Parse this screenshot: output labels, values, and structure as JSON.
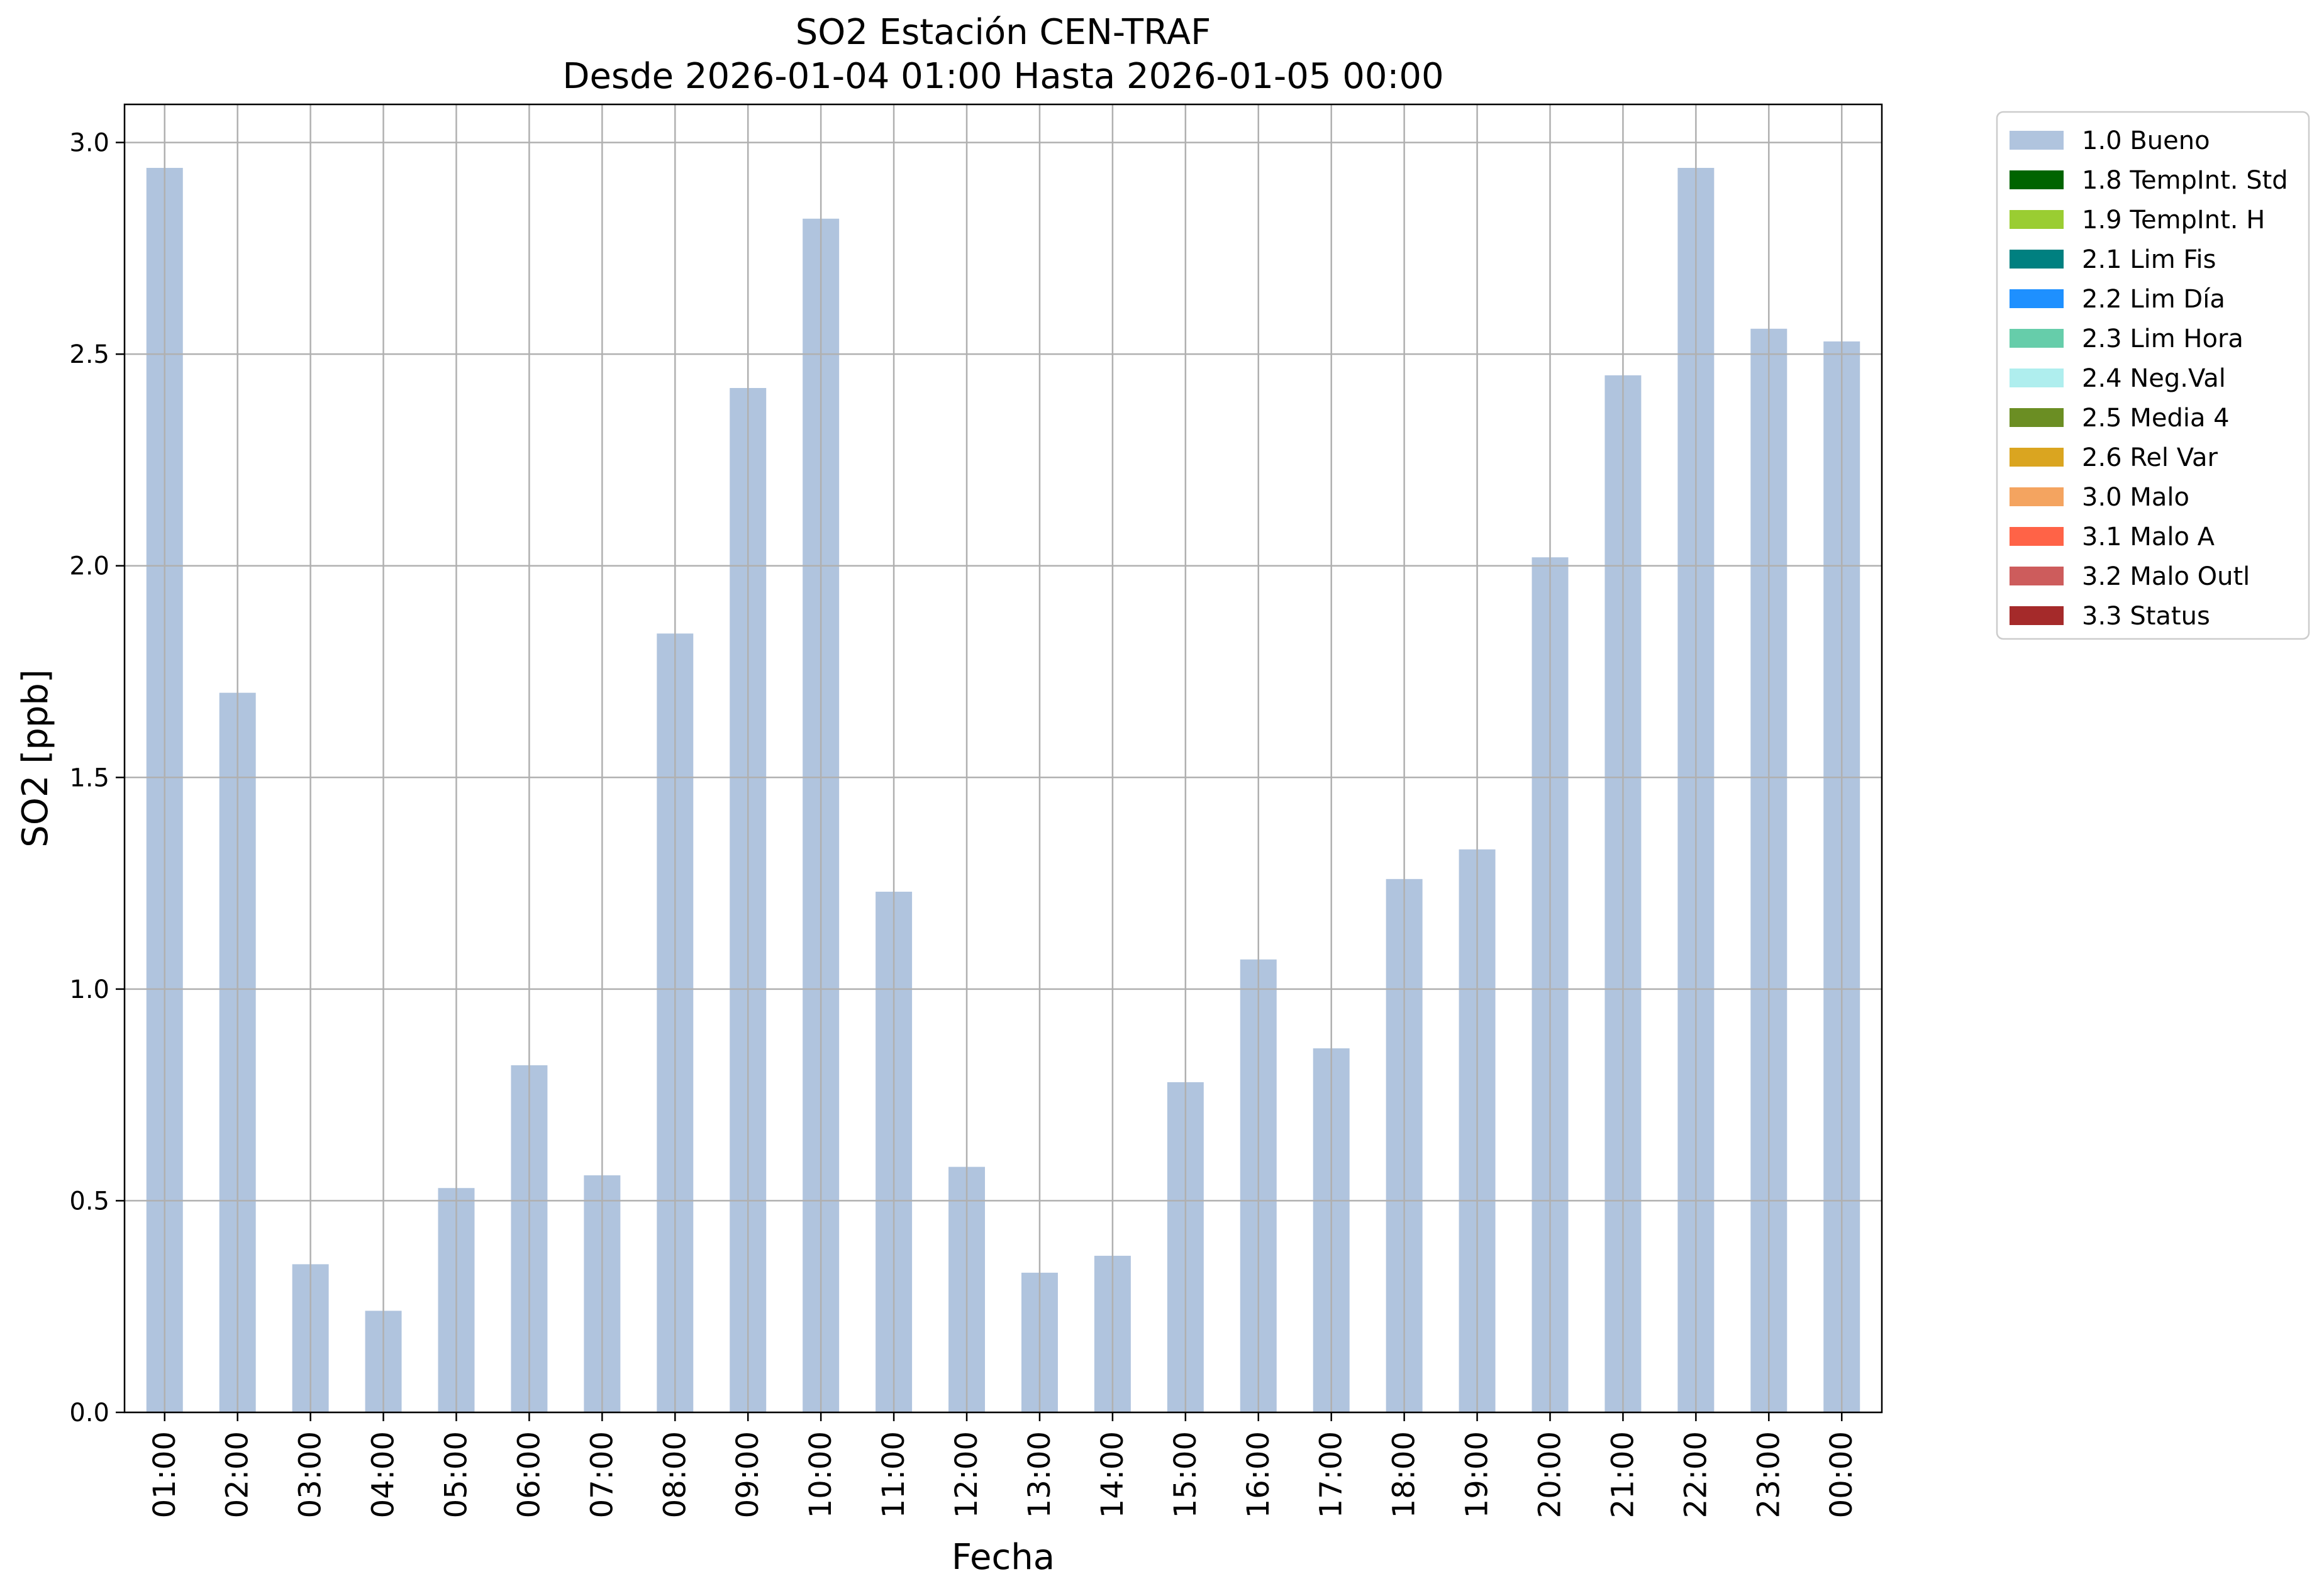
{
  "chart_data": {
    "type": "bar",
    "title": "SO2 Estación CEN-TRAF",
    "subtitle": "Desde 2026-01-04 01:00 Hasta 2026-01-05 00:00",
    "xlabel": "Fecha",
    "ylabel": "SO2 [ppb]",
    "ylim": [
      0,
      3.09
    ],
    "yticks": [
      "0.0",
      "0.5",
      "1.0",
      "1.5",
      "2.0",
      "2.5",
      "3.0"
    ],
    "grid": true,
    "legend_position": "outside-top-right",
    "categories": [
      "01:00",
      "02:00",
      "03:00",
      "04:00",
      "05:00",
      "06:00",
      "07:00",
      "08:00",
      "09:00",
      "10:00",
      "11:00",
      "12:00",
      "13:00",
      "14:00",
      "15:00",
      "16:00",
      "17:00",
      "18:00",
      "19:00",
      "20:00",
      "21:00",
      "22:00",
      "23:00",
      "00:00"
    ],
    "series": [
      {
        "name": "1.0 Bueno",
        "color": "#b0c4de",
        "values": [
          2.94,
          1.7,
          0.35,
          0.24,
          0.53,
          0.82,
          0.56,
          1.84,
          2.42,
          2.82,
          1.23,
          0.58,
          0.33,
          0.37,
          0.78,
          1.07,
          0.86,
          1.26,
          1.33,
          2.02,
          2.45,
          2.94,
          2.56,
          2.53
        ]
      }
    ],
    "legend": [
      {
        "label": "1.0 Bueno",
        "color": "#b0c4de"
      },
      {
        "label": "1.8 TempInt. Std",
        "color": "#006400"
      },
      {
        "label": "1.9 TempInt. H",
        "color": "#9acd32"
      },
      {
        "label": "2.1 Lim Fis",
        "color": "#008080"
      },
      {
        "label": "2.2 Lim Día",
        "color": "#1e90ff"
      },
      {
        "label": "2.3 Lim Hora",
        "color": "#66cdaa"
      },
      {
        "label": "2.4 Neg.Val",
        "color": "#afeeee"
      },
      {
        "label": "2.5 Media 4",
        "color": "#6b8e23"
      },
      {
        "label": "2.6 Rel Var",
        "color": "#daa520"
      },
      {
        "label": "3.0 Malo",
        "color": "#f4a460"
      },
      {
        "label": "3.1 Malo A",
        "color": "#ff6347"
      },
      {
        "label": "3.2 Malo Outl",
        "color": "#cd5c5c"
      },
      {
        "label": "3.3 Status",
        "color": "#a52a2a"
      }
    ]
  }
}
